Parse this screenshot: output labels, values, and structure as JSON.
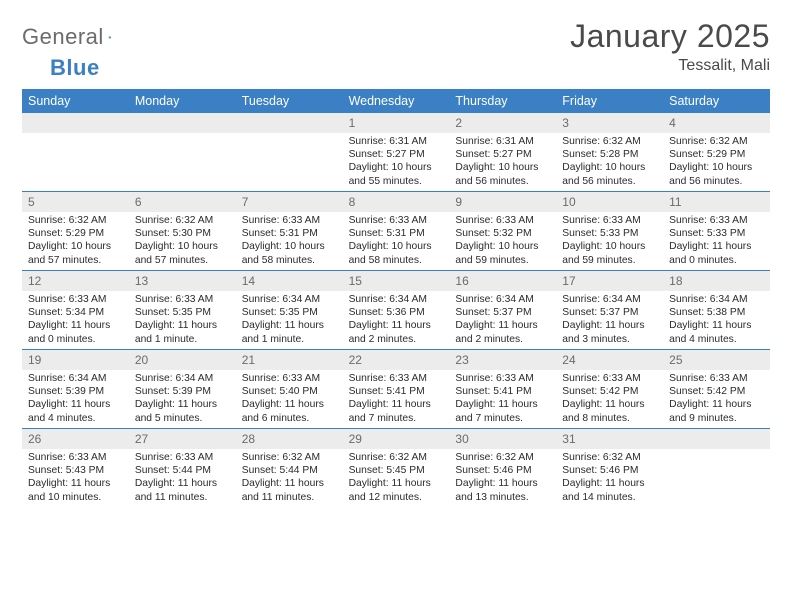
{
  "brand": {
    "word1": "General",
    "word2": "Blue"
  },
  "title": "January 2025",
  "location": "Tessalit, Mali",
  "colors": {
    "header_bg": "#3b7fc4",
    "header_text": "#ffffff",
    "daynum_bg": "#ececec",
    "daynum_text": "#6b6b6b",
    "body_text": "#2b2b2b",
    "rule": "#3b7fc4",
    "title_text": "#4a4a4a"
  },
  "day_names": [
    "Sunday",
    "Monday",
    "Tuesday",
    "Wednesday",
    "Thursday",
    "Friday",
    "Saturday"
  ],
  "weeks": [
    [
      {
        "n": "",
        "sr": "",
        "ss": "",
        "dl": ""
      },
      {
        "n": "",
        "sr": "",
        "ss": "",
        "dl": ""
      },
      {
        "n": "",
        "sr": "",
        "ss": "",
        "dl": ""
      },
      {
        "n": "1",
        "sr": "Sunrise: 6:31 AM",
        "ss": "Sunset: 5:27 PM",
        "dl": "Daylight: 10 hours and 55 minutes."
      },
      {
        "n": "2",
        "sr": "Sunrise: 6:31 AM",
        "ss": "Sunset: 5:27 PM",
        "dl": "Daylight: 10 hours and 56 minutes."
      },
      {
        "n": "3",
        "sr": "Sunrise: 6:32 AM",
        "ss": "Sunset: 5:28 PM",
        "dl": "Daylight: 10 hours and 56 minutes."
      },
      {
        "n": "4",
        "sr": "Sunrise: 6:32 AM",
        "ss": "Sunset: 5:29 PM",
        "dl": "Daylight: 10 hours and 56 minutes."
      }
    ],
    [
      {
        "n": "5",
        "sr": "Sunrise: 6:32 AM",
        "ss": "Sunset: 5:29 PM",
        "dl": "Daylight: 10 hours and 57 minutes."
      },
      {
        "n": "6",
        "sr": "Sunrise: 6:32 AM",
        "ss": "Sunset: 5:30 PM",
        "dl": "Daylight: 10 hours and 57 minutes."
      },
      {
        "n": "7",
        "sr": "Sunrise: 6:33 AM",
        "ss": "Sunset: 5:31 PM",
        "dl": "Daylight: 10 hours and 58 minutes."
      },
      {
        "n": "8",
        "sr": "Sunrise: 6:33 AM",
        "ss": "Sunset: 5:31 PM",
        "dl": "Daylight: 10 hours and 58 minutes."
      },
      {
        "n": "9",
        "sr": "Sunrise: 6:33 AM",
        "ss": "Sunset: 5:32 PM",
        "dl": "Daylight: 10 hours and 59 minutes."
      },
      {
        "n": "10",
        "sr": "Sunrise: 6:33 AM",
        "ss": "Sunset: 5:33 PM",
        "dl": "Daylight: 10 hours and 59 minutes."
      },
      {
        "n": "11",
        "sr": "Sunrise: 6:33 AM",
        "ss": "Sunset: 5:33 PM",
        "dl": "Daylight: 11 hours and 0 minutes."
      }
    ],
    [
      {
        "n": "12",
        "sr": "Sunrise: 6:33 AM",
        "ss": "Sunset: 5:34 PM",
        "dl": "Daylight: 11 hours and 0 minutes."
      },
      {
        "n": "13",
        "sr": "Sunrise: 6:33 AM",
        "ss": "Sunset: 5:35 PM",
        "dl": "Daylight: 11 hours and 1 minute."
      },
      {
        "n": "14",
        "sr": "Sunrise: 6:34 AM",
        "ss": "Sunset: 5:35 PM",
        "dl": "Daylight: 11 hours and 1 minute."
      },
      {
        "n": "15",
        "sr": "Sunrise: 6:34 AM",
        "ss": "Sunset: 5:36 PM",
        "dl": "Daylight: 11 hours and 2 minutes."
      },
      {
        "n": "16",
        "sr": "Sunrise: 6:34 AM",
        "ss": "Sunset: 5:37 PM",
        "dl": "Daylight: 11 hours and 2 minutes."
      },
      {
        "n": "17",
        "sr": "Sunrise: 6:34 AM",
        "ss": "Sunset: 5:37 PM",
        "dl": "Daylight: 11 hours and 3 minutes."
      },
      {
        "n": "18",
        "sr": "Sunrise: 6:34 AM",
        "ss": "Sunset: 5:38 PM",
        "dl": "Daylight: 11 hours and 4 minutes."
      }
    ],
    [
      {
        "n": "19",
        "sr": "Sunrise: 6:34 AM",
        "ss": "Sunset: 5:39 PM",
        "dl": "Daylight: 11 hours and 4 minutes."
      },
      {
        "n": "20",
        "sr": "Sunrise: 6:34 AM",
        "ss": "Sunset: 5:39 PM",
        "dl": "Daylight: 11 hours and 5 minutes."
      },
      {
        "n": "21",
        "sr": "Sunrise: 6:33 AM",
        "ss": "Sunset: 5:40 PM",
        "dl": "Daylight: 11 hours and 6 minutes."
      },
      {
        "n": "22",
        "sr": "Sunrise: 6:33 AM",
        "ss": "Sunset: 5:41 PM",
        "dl": "Daylight: 11 hours and 7 minutes."
      },
      {
        "n": "23",
        "sr": "Sunrise: 6:33 AM",
        "ss": "Sunset: 5:41 PM",
        "dl": "Daylight: 11 hours and 7 minutes."
      },
      {
        "n": "24",
        "sr": "Sunrise: 6:33 AM",
        "ss": "Sunset: 5:42 PM",
        "dl": "Daylight: 11 hours and 8 minutes."
      },
      {
        "n": "25",
        "sr": "Sunrise: 6:33 AM",
        "ss": "Sunset: 5:42 PM",
        "dl": "Daylight: 11 hours and 9 minutes."
      }
    ],
    [
      {
        "n": "26",
        "sr": "Sunrise: 6:33 AM",
        "ss": "Sunset: 5:43 PM",
        "dl": "Daylight: 11 hours and 10 minutes."
      },
      {
        "n": "27",
        "sr": "Sunrise: 6:33 AM",
        "ss": "Sunset: 5:44 PM",
        "dl": "Daylight: 11 hours and 11 minutes."
      },
      {
        "n": "28",
        "sr": "Sunrise: 6:32 AM",
        "ss": "Sunset: 5:44 PM",
        "dl": "Daylight: 11 hours and 11 minutes."
      },
      {
        "n": "29",
        "sr": "Sunrise: 6:32 AM",
        "ss": "Sunset: 5:45 PM",
        "dl": "Daylight: 11 hours and 12 minutes."
      },
      {
        "n": "30",
        "sr": "Sunrise: 6:32 AM",
        "ss": "Sunset: 5:46 PM",
        "dl": "Daylight: 11 hours and 13 minutes."
      },
      {
        "n": "31",
        "sr": "Sunrise: 6:32 AM",
        "ss": "Sunset: 5:46 PM",
        "dl": "Daylight: 11 hours and 14 minutes."
      },
      {
        "n": "",
        "sr": "",
        "ss": "",
        "dl": ""
      }
    ]
  ]
}
